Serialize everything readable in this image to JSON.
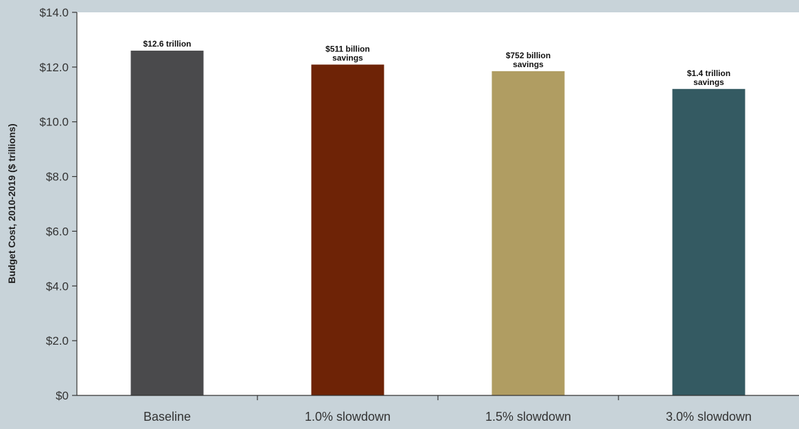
{
  "chart_data": {
    "type": "bar",
    "title": "",
    "xlabel": "",
    "ylabel": "Budget Cost, 2010-2019 ($ trillions)",
    "ylim": [
      0,
      14
    ],
    "yticks": [
      {
        "value": 0,
        "label": "$0"
      },
      {
        "value": 2,
        "label": "$2.0"
      },
      {
        "value": 4,
        "label": "$4.0"
      },
      {
        "value": 6,
        "label": "$6.0"
      },
      {
        "value": 8,
        "label": "$8.0"
      },
      {
        "value": 10,
        "label": "$10.0"
      },
      {
        "value": 12,
        "label": "$12.0"
      },
      {
        "value": 14,
        "label": "$14.0"
      }
    ],
    "categories": [
      "Baseline",
      "1.0% slowdown",
      "1.5% slowdown",
      "3.0% slowdown"
    ],
    "values": [
      12.6,
      12.09,
      11.85,
      11.2
    ],
    "data_labels": [
      [
        "$12.6 trillion"
      ],
      [
        "$511 billion",
        "savings"
      ],
      [
        "$752 billion",
        "savings"
      ],
      [
        "$1.4 trillion",
        "savings"
      ]
    ],
    "colors": [
      "#4a4a4c",
      "#6e2306",
      "#b09d62",
      "#345a62"
    ],
    "grid": false,
    "legend": "none"
  }
}
